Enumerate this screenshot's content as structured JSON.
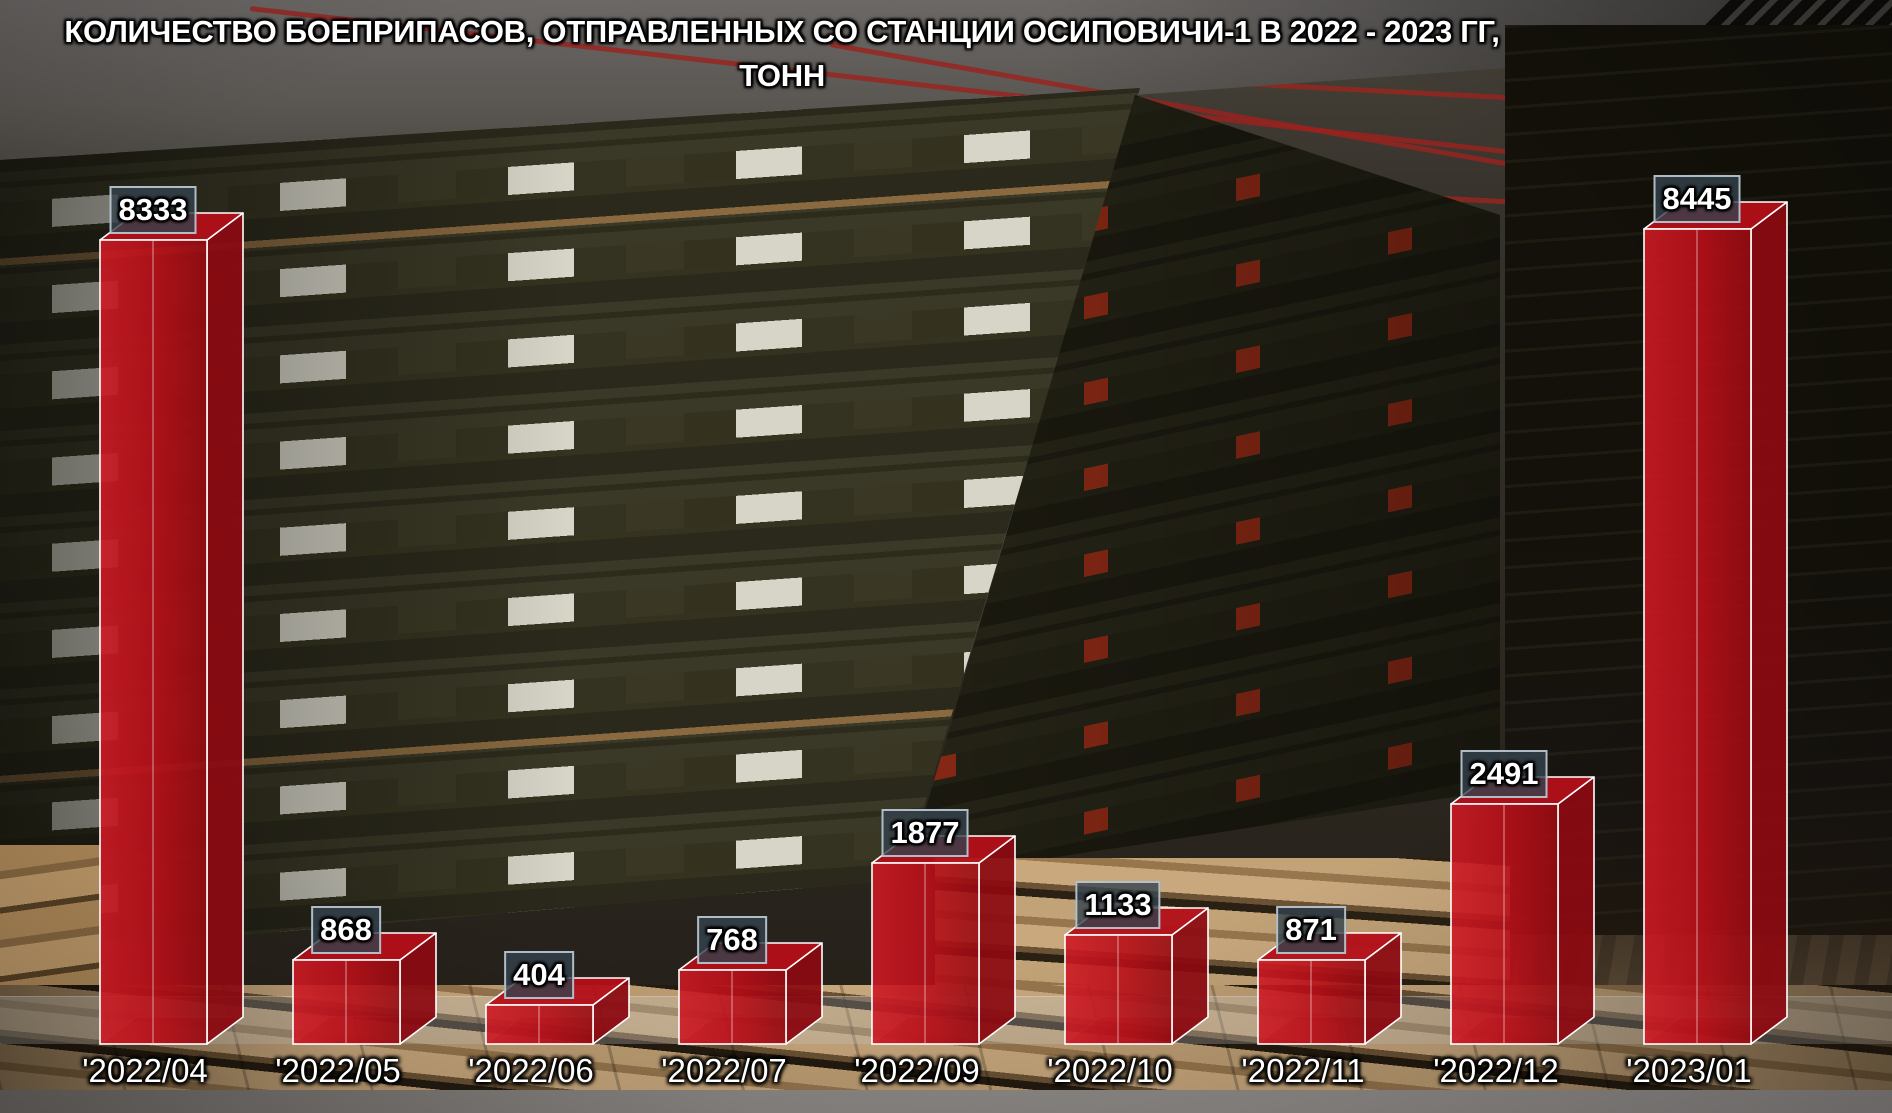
{
  "title": {
    "line1": "КОЛИЧЕСТВО БОЕПРИПАСОВ, ОТПРАВЛЕННЫХ СО СТАНЦИИ ОСИПОВИЧИ-1 В 2022 - 2023 ГГ,",
    "line2": "ТОНН"
  },
  "chart_data": {
    "type": "bar",
    "title": "КОЛИЧЕСТВО БОЕПРИПАСОВ, ОТПРАВЛЕННЫХ СО СТАНЦИИ ОСИПОВИЧИ-1 В 2022 - 2023 ГГ, ТОНН",
    "categories": [
      "'2022/04",
      "'2022/05",
      "'2022/06",
      "'2022/07",
      "'2022/09",
      "'2022/10",
      "'2022/11",
      "'2022/12",
      "'2023/01"
    ],
    "values": [
      8333,
      868,
      404,
      768,
      1877,
      1133,
      871,
      2491,
      8445
    ],
    "unit": "тонн",
    "xlabel": "",
    "ylabel": "",
    "ylim": [
      0,
      8445
    ],
    "grid": false,
    "legend": "none",
    "value_labels": "boxed above each bar",
    "bar_style": "3d-translucent",
    "colors": {
      "bar_front": "#c0121c",
      "bar_top": "#b30f18",
      "bar_side": "#8c0a11",
      "bar_edge": "#ffffff",
      "label_box_bg": "#34424e",
      "label_box_border": "#c6d3dd",
      "label_text": "#ffffff",
      "axis_text": "#ffffff",
      "hazard_diamond": "#b8361c"
    }
  }
}
